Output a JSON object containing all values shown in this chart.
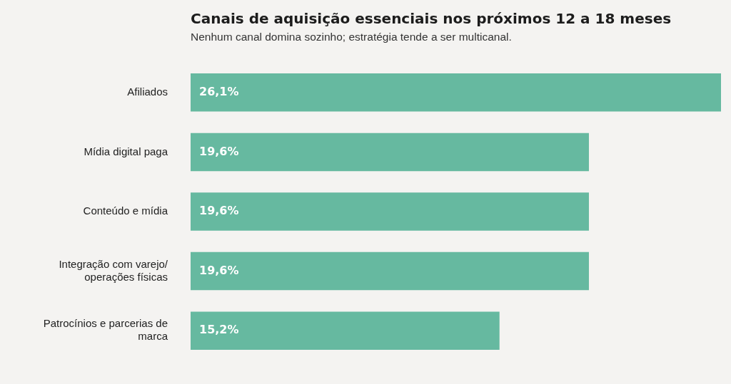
{
  "chart_data": {
    "type": "bar",
    "orientation": "horizontal",
    "title": "Canais de aquisição essenciais nos próximos 12 a 18 meses",
    "subtitle": "Nenhum canal domina sozinho; estratégia tende a ser multicanal.",
    "categories": [
      "Afiliados",
      "Mídia digital paga",
      "Conteúdo e mídia",
      "Integração com varejo/ operações físicas",
      "Patrocínios e parcerias de marca"
    ],
    "values": [
      26.1,
      19.6,
      19.6,
      19.6,
      15.2
    ],
    "value_labels": [
      "26,1%",
      "19,6%",
      "19,6%",
      "19,6%",
      "15,2%"
    ],
    "color": "#66b9a0"
  }
}
